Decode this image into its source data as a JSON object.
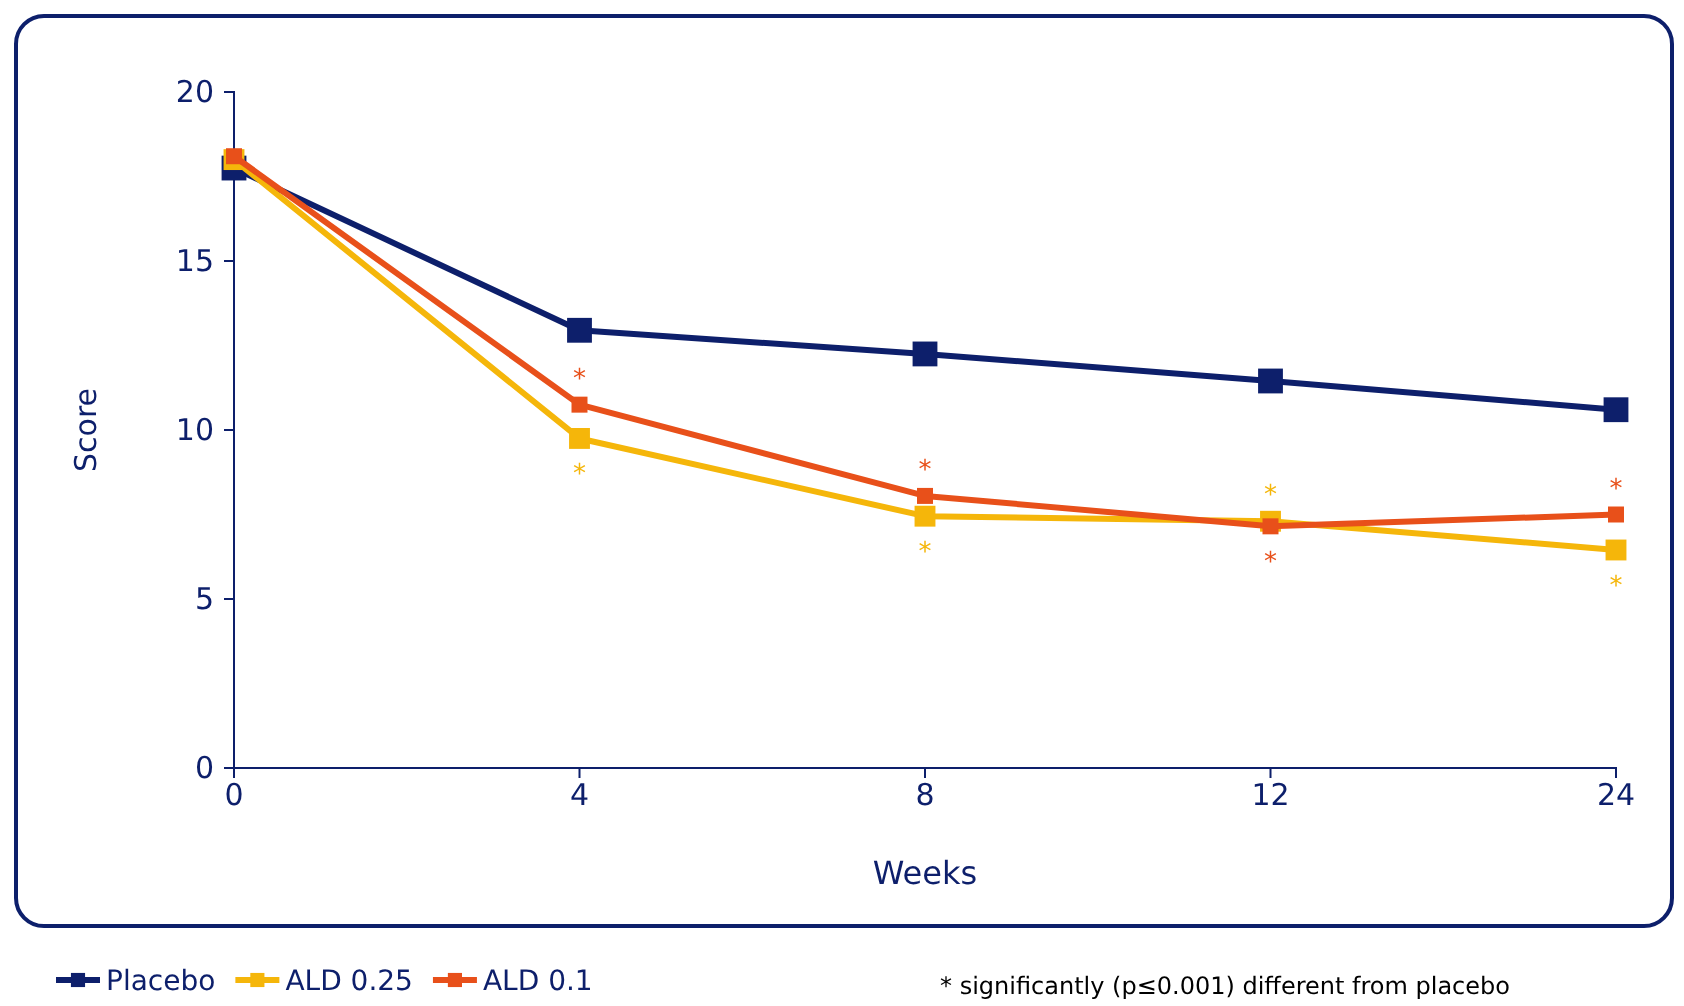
{
  "chart_data": {
    "type": "line",
    "xlabel": "Weeks",
    "ylabel": "Score",
    "categories": [
      "0",
      "4",
      "8",
      "12",
      "24"
    ],
    "ylim": [
      0,
      20
    ],
    "yticks": [
      0,
      5,
      10,
      15,
      20
    ],
    "marker": "square",
    "legend": "bottom",
    "grid": false,
    "series": [
      {
        "name": "Placebo",
        "color": "#0d1f6b",
        "values": [
          17.75,
          12.95,
          12.25,
          11.45,
          10.6
        ]
      },
      {
        "name": "ALD 0.25",
        "color": "#f5b60a",
        "values": [
          18.0,
          9.75,
          7.45,
          7.3,
          6.45
        ],
        "value_labels": [
          null,
          "*",
          "*",
          "*",
          "*"
        ]
      },
      {
        "name": "ALD 0.1",
        "color": "#e8501a",
        "values": [
          18.1,
          10.75,
          8.05,
          7.15,
          7.5
        ],
        "value_labels": [
          null,
          "*",
          "*",
          "*",
          "*"
        ]
      }
    ],
    "annotations": [
      "* significantly (p≤0.001) different from placebo"
    ]
  }
}
